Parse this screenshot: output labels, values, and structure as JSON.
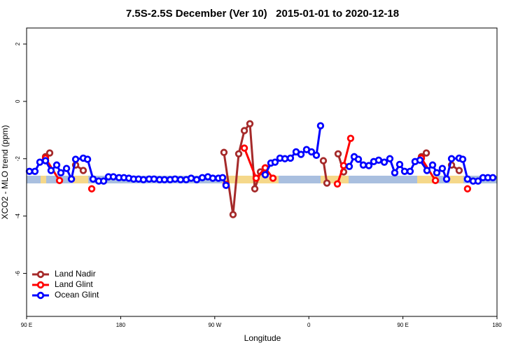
{
  "chart_data": {
    "type": "line",
    "title": "7.5S-2.5S December (Ver 10)   2015-01-01 to 2020-12-18",
    "x_label": "Longitude",
    "y_label": "XCO2 - MLO trend (ppm)",
    "xlim": [
      90,
      540
    ],
    "ylim": [
      -7.5,
      2.56
    ],
    "xticks": [
      {
        "value": 90,
        "label": "90 E"
      },
      {
        "value": 180,
        "label": "180"
      },
      {
        "value": 270,
        "label": "90 W"
      },
      {
        "value": 360,
        "label": "0"
      },
      {
        "value": 450,
        "label": "90 E"
      },
      {
        "value": 540,
        "label": "180"
      }
    ],
    "yticks": [
      2,
      0,
      -2,
      -4,
      -6
    ],
    "legend": "bottom-left",
    "series": [
      {
        "name": "Land Nadir",
        "color": "#a52a2a",
        "x": [
          108.1,
          112.1,
          null,
          136.9,
          144.2,
          null,
          278.8,
          287.5,
          292.9,
          298.3,
          303.6,
          308.3,
          313.7,
          318.3,
          null,
          373.9,
          377.3,
          null,
          388.0,
          393.3,
          null,
          467.7,
          472.4,
          null,
          496.5,
          503.8
        ],
        "values": [
          -1.93,
          -1.8,
          null,
          -2.22,
          -2.41,
          null,
          -1.78,
          -3.95,
          -1.83,
          -1.02,
          -0.78,
          -3.05,
          -2.46,
          -2.32,
          null,
          -2.07,
          -2.85,
          null,
          -1.83,
          -2.46,
          null,
          -1.93,
          -1.8,
          null,
          -2.22,
          -2.41
        ]
      },
      {
        "name": "Land Glint",
        "color": "#ff0000",
        "x": [
          108.1,
          121.5,
          null,
          152.3,
          null,
          280.8,
          null,
          298.3,
          309.6,
          318.3,
          325.7,
          null,
          387.3,
          393.3,
          400.0,
          null,
          467.7,
          481.1,
          null,
          511.8
        ],
        "values": [
          -1.98,
          -2.76,
          null,
          -3.05,
          null,
          -2.9,
          null,
          -1.63,
          -2.68,
          -2.32,
          -2.68,
          null,
          -2.88,
          -2.24,
          -1.29,
          null,
          -1.98,
          -2.76,
          null,
          -3.05
        ]
      },
      {
        "name": "Ocean Glint",
        "color": "#0000ff",
        "x": [
          92.7,
          98.0,
          102.7,
          108.1,
          113.4,
          118.8,
          122.8,
          128.2,
          132.9,
          136.9,
          144.2,
          148.3,
          153.6,
          159.0,
          163.7,
          168.3,
          173.0,
          178.4,
          183.1,
          187.8,
          192.4,
          197.1,
          201.8,
          207.2,
          211.9,
          217.2,
          221.9,
          227.3,
          232.0,
          237.3,
          242.7,
          247.4,
          252.7,
          258.1,
          263.4,
          268.1,
          273.5,
          277.5,
          280.8,
          null,
          318.3,
          323.7,
          327.7,
          332.4,
          337.1,
          342.4,
          347.8,
          352.5,
          357.8,
          362.5,
          367.2,
          371.2,
          null,
          398.7,
          403.4,
          407.4,
          412.1,
          417.4,
          422.1,
          426.8,
          432.2,
          437.5,
          442.2,
          446.9,
          451.6,
          456.9,
          461.6,
          466.3,
          473.0,
          478.4,
          482.4,
          487.7,
          491.8,
          496.5,
          503.8,
          507.2,
          511.8,
          517.2,
          521.9,
          526.6,
          531.3,
          536.0
        ],
        "values": [
          -2.44,
          -2.44,
          -2.12,
          -2.07,
          -2.41,
          -2.22,
          -2.49,
          -2.34,
          -2.71,
          -2.02,
          -1.98,
          -2.02,
          -2.71,
          -2.78,
          -2.78,
          -2.63,
          -2.63,
          -2.66,
          -2.66,
          -2.68,
          -2.71,
          -2.71,
          -2.73,
          -2.71,
          -2.71,
          -2.73,
          -2.73,
          -2.73,
          -2.71,
          -2.73,
          -2.73,
          -2.68,
          -2.73,
          -2.66,
          -2.63,
          -2.68,
          -2.68,
          -2.66,
          -2.93,
          null,
          -2.56,
          -2.15,
          -2.12,
          -1.98,
          -2.0,
          -1.98,
          -1.76,
          -1.85,
          -1.68,
          -1.76,
          -1.88,
          -0.85,
          null,
          -2.27,
          -1.93,
          -2.02,
          -2.22,
          -2.24,
          -2.1,
          -2.05,
          -2.12,
          -2.0,
          -2.49,
          -2.2,
          -2.44,
          -2.44,
          -2.1,
          -2.05,
          -2.41,
          -2.22,
          -2.49,
          -2.34,
          -2.71,
          -2.0,
          -1.98,
          -2.02,
          -2.71,
          -2.78,
          -2.78,
          -2.66,
          -2.66,
          -2.66
        ]
      }
    ]
  }
}
